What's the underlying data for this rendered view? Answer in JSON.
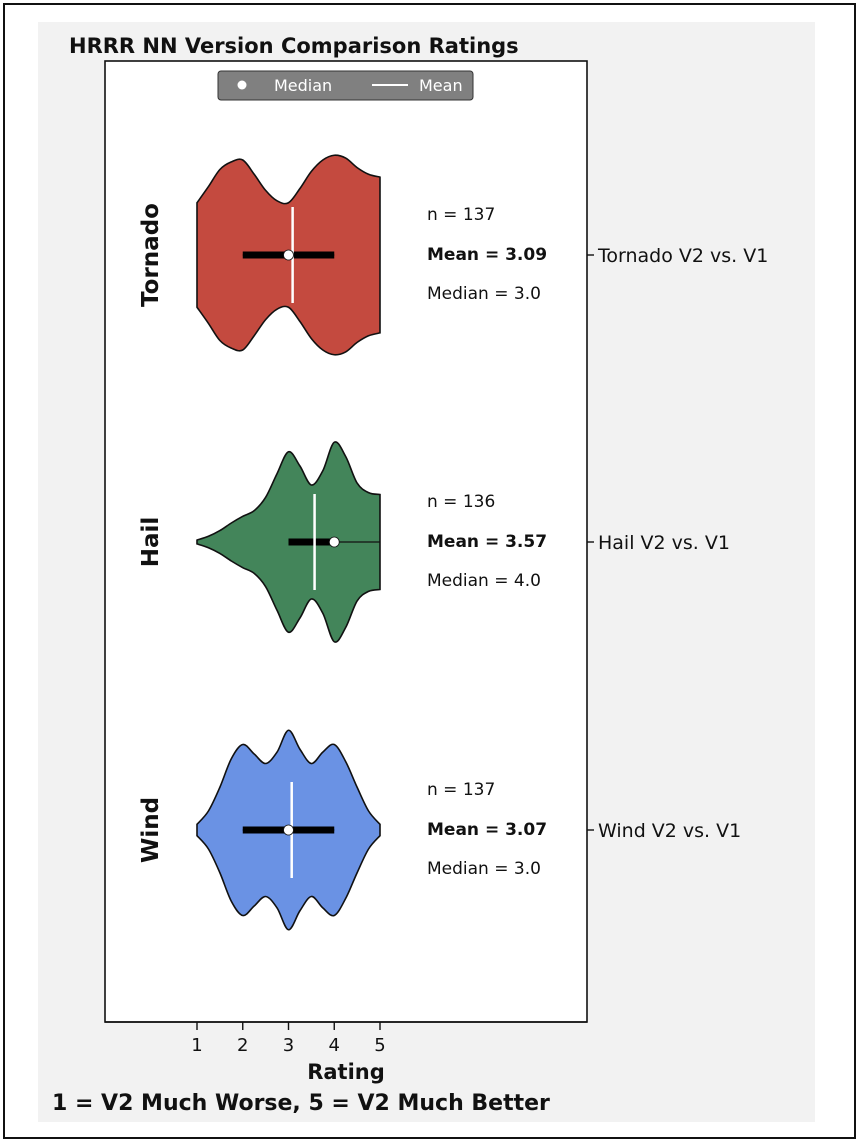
{
  "chart_data": {
    "type": "violin",
    "title": "HRRR NN Version Comparison Ratings",
    "xlabel": "Rating",
    "caption": "1 = V2 Much Worse, 5 = V2 Much Better",
    "xlim": [
      1,
      5
    ],
    "xticks": [
      1,
      2,
      3,
      4,
      5
    ],
    "legend": {
      "placement": "top-center",
      "entries": [
        {
          "label": "Median",
          "marker": "dot"
        },
        {
          "label": "Mean",
          "marker": "line"
        }
      ]
    },
    "series": [
      {
        "name": "Tornado",
        "comparison": "Tornado V2 vs. V1",
        "color": "#c44a3f",
        "n_text": "n = 137",
        "mean_text": "Mean = 3.09",
        "median_text": "Median = 3.0",
        "mean": 3.09,
        "median": 3.0,
        "q1": 2.0,
        "q3": 4.0,
        "whisker_low": 2.0,
        "whisker_high": 4.0,
        "density_y": [
          1.0,
          1.25,
          1.5,
          1.75,
          2.0,
          2.25,
          2.5,
          2.75,
          3.0,
          3.25,
          3.5,
          3.75,
          4.0,
          4.25,
          4.5,
          4.75,
          5.0
        ],
        "density_w": [
          0.55,
          0.72,
          0.9,
          0.98,
          1.0,
          0.85,
          0.68,
          0.57,
          0.55,
          0.7,
          0.88,
          1.0,
          1.05,
          1.02,
          0.92,
          0.85,
          0.82
        ]
      },
      {
        "name": "Hail",
        "comparison": "Hail V2 vs. V1",
        "color": "#43855a",
        "n_text": "n = 136",
        "mean_text": "Mean = 3.57",
        "median_text": "Median = 4.0",
        "mean": 3.57,
        "median": 4.0,
        "q1": 3.0,
        "q3": 4.0,
        "whisker_low": 3.0,
        "whisker_high": 5.0,
        "density_y": [
          1.0,
          1.25,
          1.5,
          1.75,
          2.0,
          2.25,
          2.5,
          2.75,
          3.0,
          3.25,
          3.5,
          3.75,
          4.0,
          4.25,
          4.5,
          4.75,
          5.0
        ],
        "density_w": [
          0.02,
          0.06,
          0.12,
          0.2,
          0.27,
          0.33,
          0.47,
          0.72,
          0.95,
          0.8,
          0.6,
          0.75,
          1.05,
          0.9,
          0.62,
          0.52,
          0.5
        ]
      },
      {
        "name": "Wind",
        "comparison": "Wind V2 vs. V1",
        "color": "#6a92e4",
        "n_text": "n = 137",
        "mean_text": "Mean = 3.07",
        "median_text": "Median = 3.0",
        "mean": 3.07,
        "median": 3.0,
        "q1": 2.0,
        "q3": 4.0,
        "whisker_low": 2.0,
        "whisker_high": 4.0,
        "density_y": [
          1.0,
          1.25,
          1.5,
          1.75,
          2.0,
          2.25,
          2.5,
          2.75,
          3.0,
          3.25,
          3.5,
          3.75,
          4.0,
          4.25,
          4.5,
          4.75,
          5.0
        ],
        "density_w": [
          0.06,
          0.2,
          0.45,
          0.75,
          0.9,
          0.8,
          0.7,
          0.82,
          1.05,
          0.85,
          0.7,
          0.82,
          0.9,
          0.72,
          0.45,
          0.2,
          0.06
        ]
      }
    ]
  }
}
